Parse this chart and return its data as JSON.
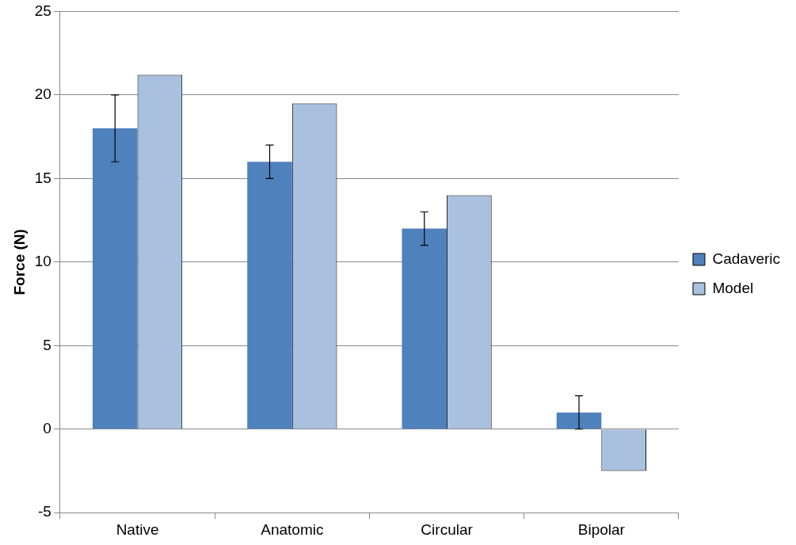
{
  "chart_data": {
    "type": "bar",
    "ylabel": "Force (N)",
    "categories": [
      "Native",
      "Anatomic",
      "Circular",
      "Bipolar"
    ],
    "series": [
      {
        "name": "Cadaveric",
        "color": "#4f81bd",
        "values": [
          18,
          16,
          12,
          1
        ],
        "errors": [
          2,
          1,
          1,
          1
        ]
      },
      {
        "name": "Model",
        "color": "#a9c0de",
        "values": [
          21.2,
          19.5,
          14,
          -2.5
        ]
      }
    ],
    "ylim": [
      -5,
      25
    ],
    "yticks": [
      -5,
      0,
      5,
      10,
      15,
      20,
      25
    ],
    "grid": "y",
    "legend": "right"
  }
}
